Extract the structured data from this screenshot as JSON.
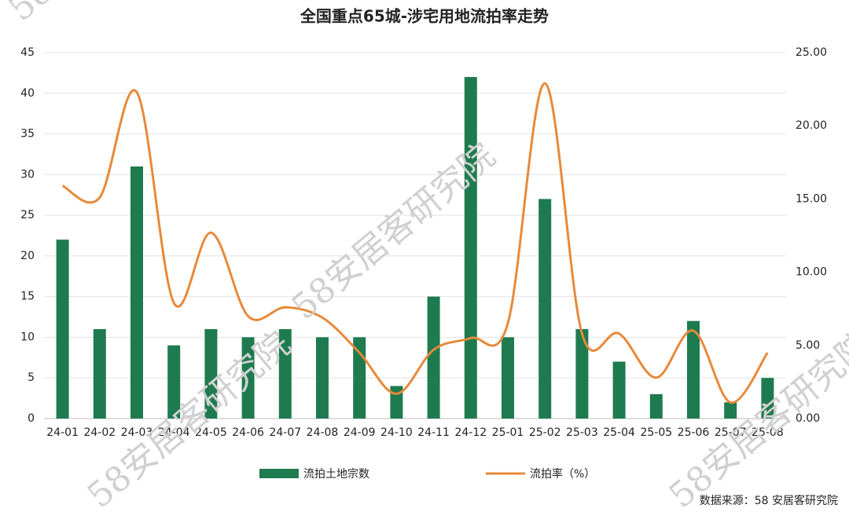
{
  "chart_data": {
    "type": "bar-line",
    "title": "全国重点65城-涉宅用地流拍率走势",
    "source": "数据来源：58 安居客研究院",
    "watermark": "58安居客研究院",
    "categories": [
      "24-01",
      "24-02",
      "24-03",
      "24-04",
      "24-05",
      "24-06",
      "24-07",
      "24-08",
      "24-09",
      "24-10",
      "24-11",
      "24-12",
      "25-01",
      "25-02",
      "25-03",
      "25-04",
      "25-05",
      "25-06",
      "25-07",
      "25-08"
    ],
    "series": [
      {
        "name": "流拍土地宗数",
        "type": "bar",
        "color": "#1e7b4f",
        "values": [
          22,
          11,
          31,
          9,
          11,
          10,
          11,
          10,
          10,
          4,
          15,
          42,
          10,
          27,
          11,
          7,
          3,
          12,
          2,
          5
        ]
      },
      {
        "name": "流拍率（%）",
        "type": "line",
        "axis": "y2",
        "color": "#e8893a",
        "values": [
          15.9,
          15.1,
          22.3,
          7.9,
          12.7,
          7.0,
          7.6,
          6.9,
          4.5,
          1.7,
          4.7,
          5.5,
          6.5,
          22.9,
          5.8,
          5.8,
          2.8,
          6.0,
          1.1,
          4.5
        ]
      }
    ],
    "ylim": [
      0,
      45
    ],
    "yticks": [
      0,
      5,
      10,
      15,
      20,
      25,
      30,
      35,
      40,
      45
    ],
    "y2lim": [
      0,
      25
    ],
    "y2ticks": [
      {
        "value": 0,
        "label": "0.00"
      },
      {
        "value": 5,
        "label": "5.00"
      },
      {
        "value": 10,
        "label": "10.00"
      },
      {
        "value": 15,
        "label": "15.00"
      },
      {
        "value": 20,
        "label": "20.00"
      },
      {
        "value": 25,
        "label": "25.00"
      }
    ],
    "grid": true,
    "legend": "bottom"
  }
}
